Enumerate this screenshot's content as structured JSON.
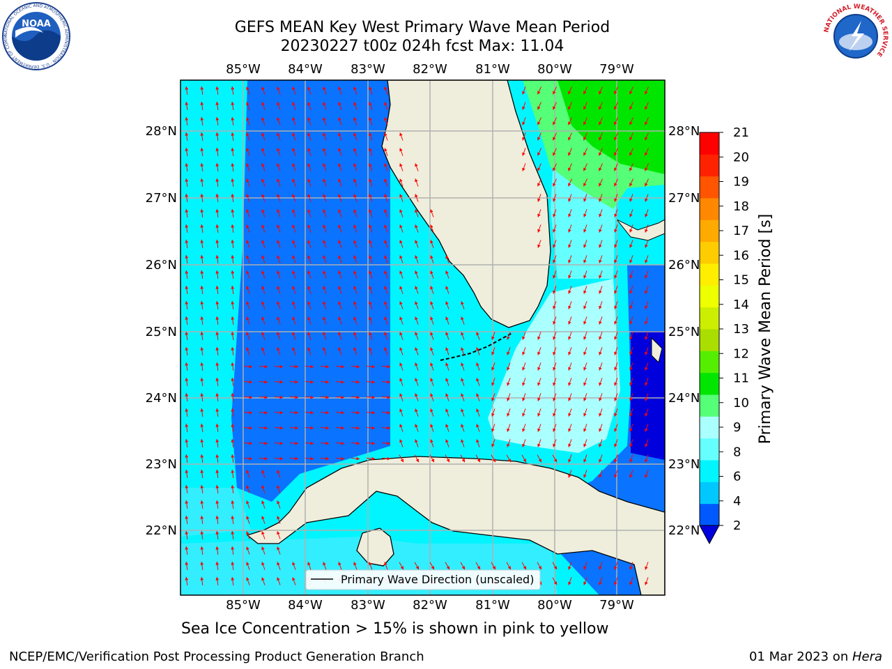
{
  "header": {
    "title_line1": "GEFS MEAN Key West Primary Wave Mean Period",
    "title_line2": "20230227 t00z 024h fcst   Max: 11.04"
  },
  "logos": {
    "noaa": {
      "text": "NOAA",
      "ring_text": "NATIONAL OCEANIC AND ATMOSPHERIC ADMINISTRATION · U.S. DEPARTMENT OF COMMERCE"
    },
    "nws": {
      "ring_text": "NATIONAL WEATHER SERVICE"
    }
  },
  "map": {
    "lon_labels": [
      "85°W",
      "84°W",
      "83°W",
      "82°W",
      "81°W",
      "80°W",
      "79°W"
    ],
    "lat_labels": [
      "28°N",
      "27°N",
      "26°N",
      "25°N",
      "24°N",
      "23°N",
      "22°N"
    ],
    "legend_label": "Primary Wave Direction (unscaled)"
  },
  "colorbar": {
    "label": "Primary Wave Mean Period [s]",
    "ticks": [
      "2",
      "4",
      "6",
      "8",
      "9",
      "10",
      "11",
      "12",
      "13",
      "14",
      "15",
      "16",
      "17",
      "18",
      "19",
      "20",
      "21"
    ],
    "colors": [
      "#0059ff",
      "#00c8ff",
      "#00f5ff",
      "#66ffff",
      "#aaffff",
      "#55ff77",
      "#00e600",
      "#55ee00",
      "#aadd00",
      "#ccee00",
      "#eeff00",
      "#ffee00",
      "#ffcc00",
      "#ffaa00",
      "#ff8800",
      "#ff5500",
      "#ff2200",
      "#ff0000"
    ],
    "extend_color": "#0000dd"
  },
  "note": "Sea Ice Concentration > 15% is shown in pink to yellow",
  "footer": {
    "left": "NCEP/EMC/Verification Post Processing Product Generation Branch",
    "right_prefix": "01 Mar 2023 on ",
    "right_host": "Hera"
  }
}
